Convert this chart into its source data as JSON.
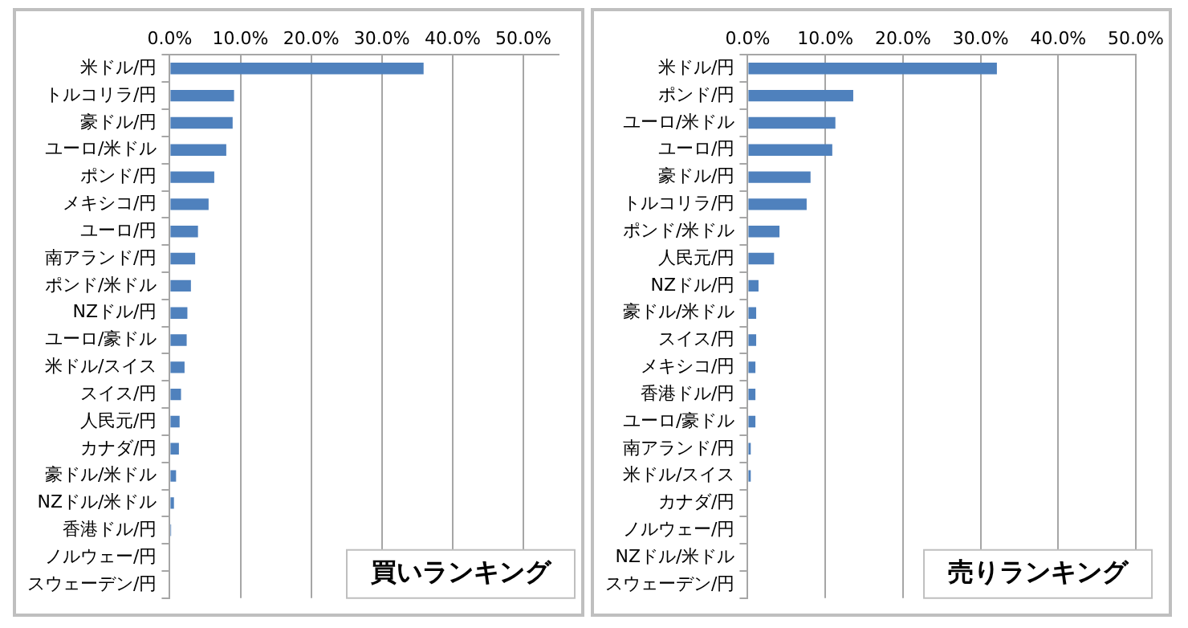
{
  "chart_data": [
    {
      "type": "bar",
      "orientation": "horizontal",
      "title": "買いランキング",
      "categories": [
        "米ドル/円",
        "トルコリラ/円",
        "豪ドル/円",
        "ユーロ/米ドル",
        "ポンド/円",
        "メキシコ/円",
        "ユーロ/円",
        "南アランド/円",
        "ポンド/米ドル",
        "NZドル/円",
        "ユーロ/豪ドル",
        "米ドル/スイス",
        "スイス/円",
        "人民元/円",
        "カナダ/円",
        "豪ドル/米ドル",
        "NZドル/米ドル",
        "香港ドル/円",
        "ノルウェー/円",
        "スウェーデン/円"
      ],
      "values": [
        35.9,
        9.1,
        8.9,
        8.0,
        6.3,
        5.5,
        4.0,
        3.6,
        3.0,
        2.5,
        2.4,
        2.1,
        1.6,
        1.4,
        1.3,
        0.9,
        0.6,
        0.2,
        0,
        0
      ],
      "color": "#4f81bd",
      "xlim": [
        0,
        55
      ],
      "xticks": [
        {
          "value": 0,
          "label": "0.0%"
        },
        {
          "value": 10,
          "label": "10.0%"
        },
        {
          "value": 20,
          "label": "20.0%"
        },
        {
          "value": 30,
          "label": "30.0%"
        },
        {
          "value": 40,
          "label": "40.0%"
        },
        {
          "value": 50,
          "label": "50.0%"
        }
      ],
      "grid": "x",
      "legend": false
    },
    {
      "type": "bar",
      "orientation": "horizontal",
      "title": "売りランキング",
      "categories": [
        "米ドル/円",
        "ポンド/円",
        "ユーロ/米ドル",
        "ユーロ/円",
        "豪ドル/円",
        "トルコリラ/円",
        "ポンド/米ドル",
        "人民元/円",
        "NZドル/円",
        "豪ドル/米ドル",
        "スイス/円",
        "メキシコ/円",
        "香港ドル/円",
        "ユーロ/豪ドル",
        "南アランド/円",
        "米ドル/スイス",
        "カナダ/円",
        "ノルウェー/円",
        "NZドル/米ドル",
        "スウェーデン/円"
      ],
      "values": [
        32.1,
        13.6,
        11.3,
        10.9,
        8.1,
        7.6,
        4.1,
        3.4,
        1.4,
        1.1,
        1.1,
        1.0,
        1.0,
        1.0,
        0.4,
        0.4,
        0,
        0,
        0,
        0
      ],
      "color": "#4f81bd",
      "xlim": [
        0,
        50
      ],
      "xticks": [
        {
          "value": 0,
          "label": "0.0%"
        },
        {
          "value": 10,
          "label": "10.0%"
        },
        {
          "value": 20,
          "label": "20.0%"
        },
        {
          "value": 30,
          "label": "30.0%"
        },
        {
          "value": 40,
          "label": "40.0%"
        },
        {
          "value": 50,
          "label": "50.0%"
        }
      ],
      "grid": "x",
      "legend": false
    }
  ]
}
